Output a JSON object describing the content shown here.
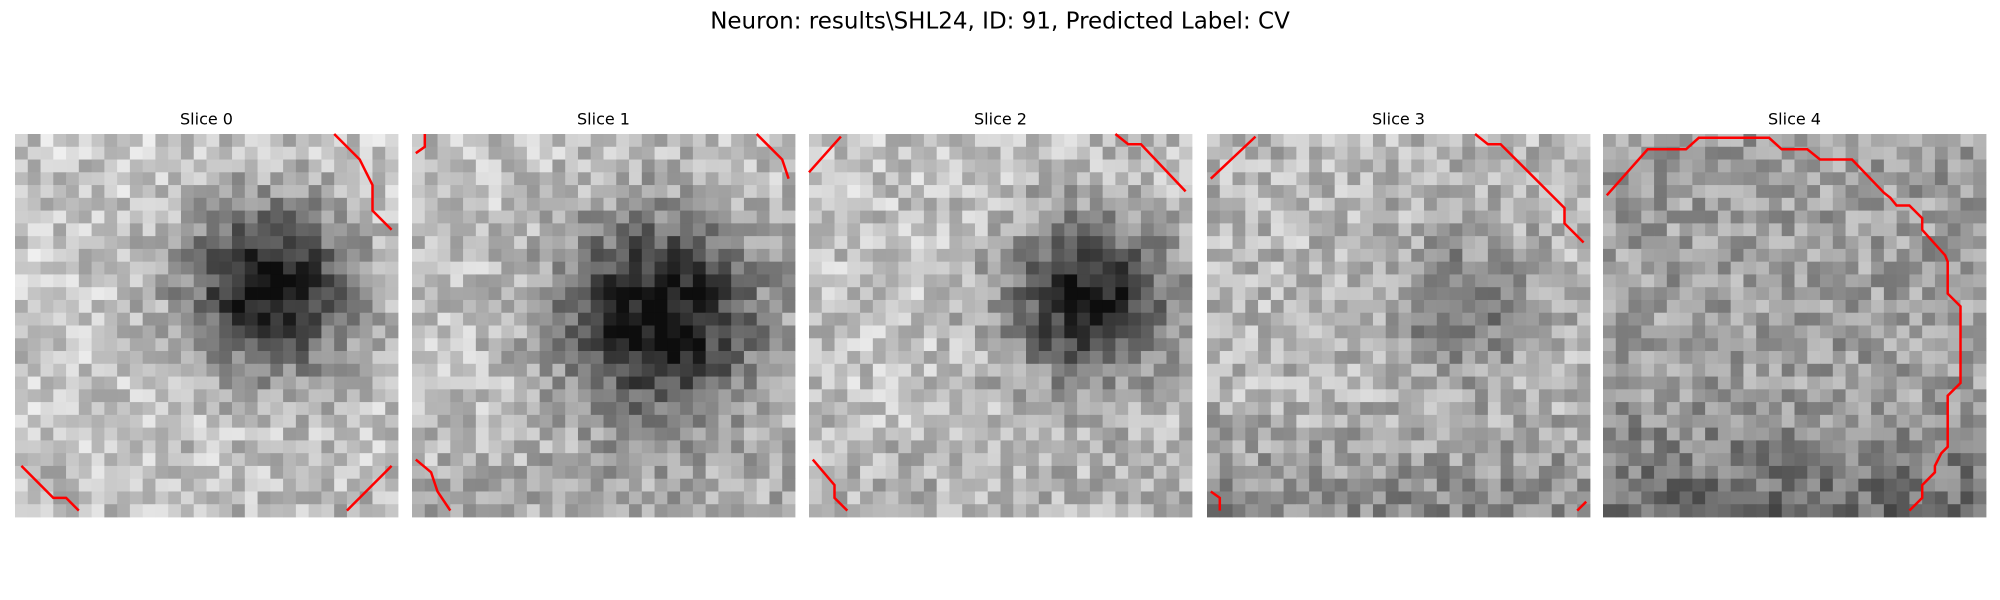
{
  "title": "Neuron: results\\SHL24, ID: 91, Predicted Label: CV",
  "panels": [
    {
      "title": "Slice 0"
    },
    {
      "title": "Slice 1"
    },
    {
      "title": "Slice 2"
    },
    {
      "title": "Slice 3"
    },
    {
      "title": "Slice 4"
    }
  ]
}
